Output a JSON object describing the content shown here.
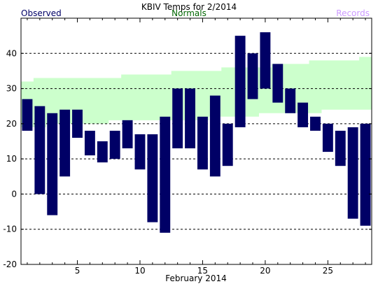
{
  "chart_data": {
    "type": "bar",
    "title": "KBIV Temps for 2/2014",
    "xlabel": "February 2014",
    "ylabel": "",
    "ylim": [
      -20,
      50
    ],
    "xlim": [
      0.5,
      28.5
    ],
    "yticks": [
      -20,
      -10,
      0,
      10,
      20,
      30,
      40
    ],
    "xticks": [
      5,
      10,
      15,
      20,
      25
    ],
    "grid": true,
    "legend": [
      {
        "label": "Observed",
        "color": "#000066",
        "position": "top-left"
      },
      {
        "label": "Normals",
        "color": "#006600",
        "position": "top-center"
      },
      {
        "label": "Records",
        "color": "#cc99ff",
        "position": "top-right"
      }
    ],
    "days": [
      1,
      2,
      3,
      4,
      5,
      6,
      7,
      8,
      9,
      10,
      11,
      12,
      13,
      14,
      15,
      16,
      17,
      18,
      19,
      20,
      21,
      22,
      23,
      24,
      25,
      26,
      27,
      28
    ],
    "series": [
      {
        "name": "Observed",
        "color": "#000066",
        "high": [
          27,
          25,
          23,
          24,
          24,
          18,
          15,
          18,
          21,
          17,
          17,
          22,
          30,
          30,
          22,
          28,
          20,
          45,
          40,
          46,
          37,
          30,
          26,
          22,
          20,
          18,
          19,
          20
        ],
        "low": [
          18,
          0,
          -6,
          5,
          16,
          11,
          9,
          10,
          13,
          7,
          -8,
          -11,
          13,
          13,
          7,
          5,
          8,
          19,
          27,
          30,
          26,
          23,
          19,
          18,
          12,
          8,
          -7,
          -9
        ]
      },
      {
        "name": "Normals",
        "color": "#ccffcc",
        "high": [
          32,
          33,
          33,
          33,
          33,
          33,
          33,
          33,
          34,
          34,
          34,
          34,
          35,
          35,
          35,
          35,
          36,
          36,
          36,
          36,
          37,
          37,
          37,
          38,
          38,
          38,
          38,
          39
        ],
        "low": [
          19,
          19,
          20,
          20,
          20,
          20,
          20,
          21,
          21,
          21,
          21,
          21,
          21,
          21,
          21,
          22,
          22,
          22,
          22,
          23,
          23,
          23,
          23,
          23,
          24,
          24,
          24,
          24
        ]
      }
    ]
  }
}
